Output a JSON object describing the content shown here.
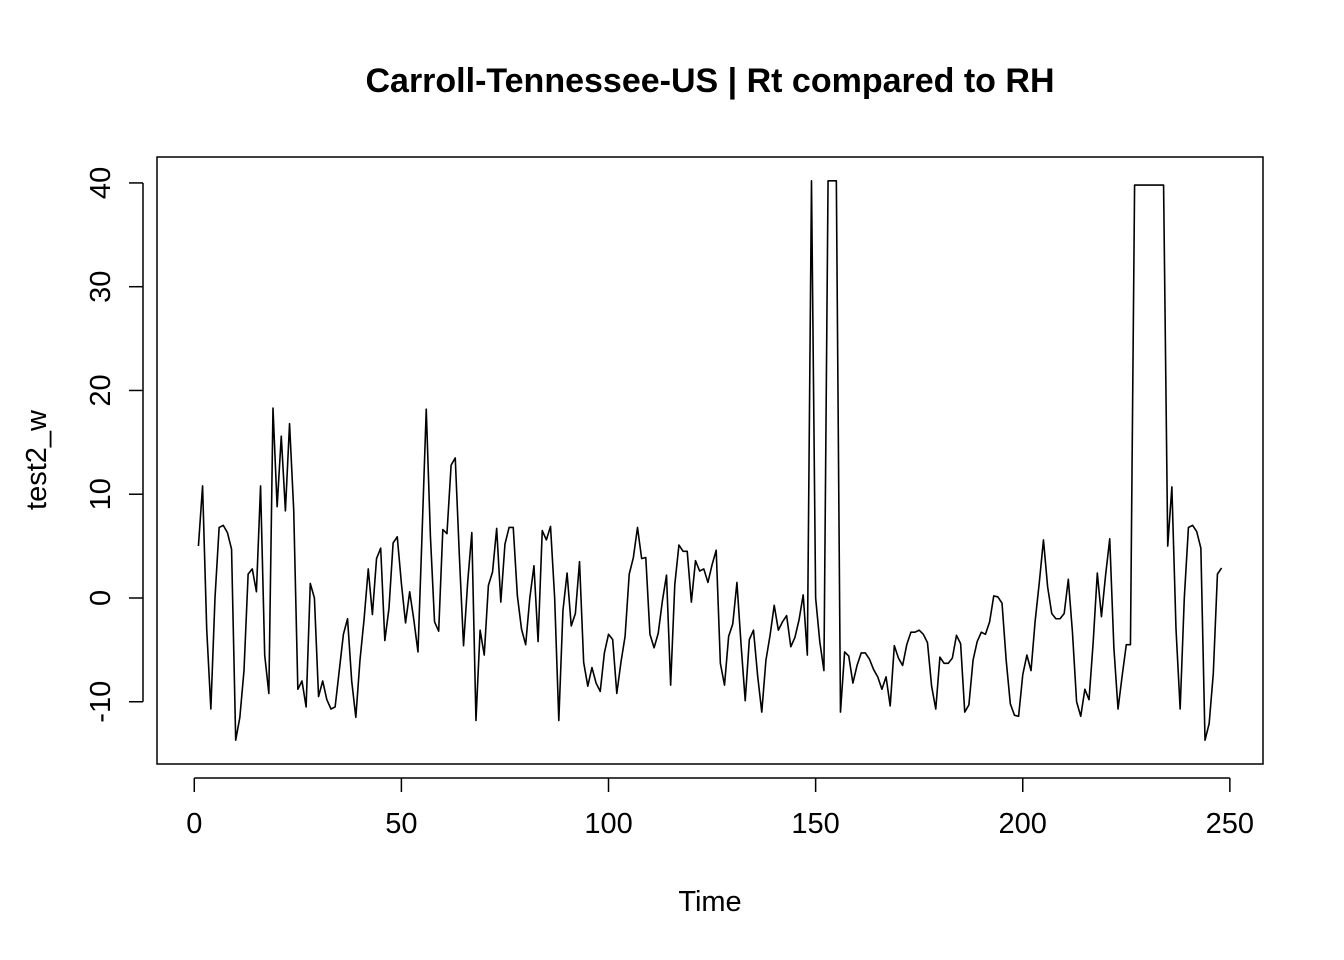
{
  "chart_data": {
    "type": "line",
    "title": "Carroll-Tennessee-US | Rt compared to RH",
    "xlabel": "Time",
    "ylabel": "test2_w",
    "xlim": [
      -9,
      258
    ],
    "ylim": [
      -16,
      42.5
    ],
    "x_ticks": [
      0,
      50,
      100,
      150,
      200,
      250
    ],
    "x_tick_labels": [
      "0",
      "50",
      "100",
      "150",
      "200",
      "250"
    ],
    "y_ticks": [
      -10,
      0,
      10,
      20,
      30,
      40
    ],
    "y_tick_labels": [
      "-10",
      "0",
      "10",
      "20",
      "30",
      "40"
    ],
    "grid": false,
    "series": [
      {
        "x_start": 1,
        "values": [
          5,
          10.8,
          -3,
          -10.7,
          0,
          6.8,
          7,
          6.3,
          4.7,
          -13.7,
          -11.5,
          -7,
          2.3,
          2.8,
          0.6,
          10.8,
          -5.5,
          -9.2,
          18.3,
          8.8,
          15.6,
          8.4,
          16.8,
          8.5,
          -8.8,
          -8,
          -10.5,
          1.4,
          0,
          -9.5,
          -8,
          -9.8,
          -10.7,
          -10.5,
          -7,
          -3.5,
          -2,
          -8,
          -11.5,
          -6,
          -2,
          2.8,
          -1.6,
          3.8,
          4.8,
          -4.1,
          -1,
          5.3,
          5.9,
          1.4,
          -2.4,
          0.6,
          -2.1,
          -5.2,
          6.3,
          18.2,
          6,
          -2.3,
          -3.2,
          6.6,
          6.2,
          12.8,
          13.5,
          4,
          -4.6,
          1.5,
          6.3,
          -11.8,
          -3.1,
          -5.5,
          1.2,
          2.5,
          6.7,
          -0.4,
          5.2,
          6.8,
          6.8,
          0.2,
          -3,
          -4.5,
          0,
          3.1,
          -4.2,
          6.5,
          5.6,
          6.9,
          0,
          -11.8,
          -1.2,
          2.4,
          -2.7,
          -1.5,
          3.5,
          -6.2,
          -8.5,
          -6.7,
          -8.2,
          -9,
          -5.3,
          -3.5,
          -4,
          -9.2,
          -6.2,
          -3.7,
          2.3,
          3.9,
          6.8,
          3.8,
          3.9,
          -3.5,
          -4.8,
          -3.4,
          -0.3,
          2.2,
          -8.4,
          1.3,
          5.1,
          4.5,
          4.5,
          -0.4,
          3.6,
          2.6,
          2.8,
          1.5,
          3.2,
          4.6,
          -6.3,
          -8.4,
          -3.7,
          -2.5,
          1.5,
          -4.5,
          -9.9,
          -4,
          -3.1,
          -7.5,
          -11,
          -6,
          -3.6,
          -0.7,
          -3.1,
          -2.3,
          -1.7,
          -4.7,
          -3.8,
          -2.1,
          0.3,
          -5.5,
          40.2,
          0,
          -4.2,
          -7,
          40.2,
          40.2,
          40.2,
          -11,
          -5.2,
          -5.6,
          -8.2,
          -6.5,
          -5.3,
          -5.3,
          -5.9,
          -6.9,
          -7.6,
          -8.8,
          -7.6,
          -10.4,
          -4.6,
          -5.8,
          -6.5,
          -4.5,
          -3.3,
          -3.3,
          -3.1,
          -3.5,
          -4.3,
          -8.5,
          -10.7,
          -5.7,
          -6.3,
          -6.3,
          -5.8,
          -3.6,
          -4.4,
          -11,
          -10.3,
          -6,
          -4.2,
          -3.3,
          -3.5,
          -2.3,
          0.2,
          0.1,
          -0.5,
          -6,
          -10.2,
          -11.3,
          -11.4,
          -7.4,
          -5.5,
          -7,
          -2.2,
          1.5,
          5.6,
          1.1,
          -1.5,
          -2,
          -2,
          -1.5,
          1.8,
          -3.3,
          -10,
          -11.4,
          -8.8,
          -9.8,
          -4.3,
          2.4,
          -1.8,
          2.2,
          5.7,
          -4.8,
          -10.7,
          -7.5,
          -4.5,
          -4.5,
          39.8,
          39.8,
          39.8,
          39.8,
          39.8,
          39.8,
          39.8,
          39.8,
          5,
          10.7,
          -3,
          -10.7,
          0,
          6.8,
          7,
          6.4,
          4.8,
          -13.7,
          -12.1,
          -7.3,
          2.3,
          2.9
        ]
      }
    ]
  }
}
